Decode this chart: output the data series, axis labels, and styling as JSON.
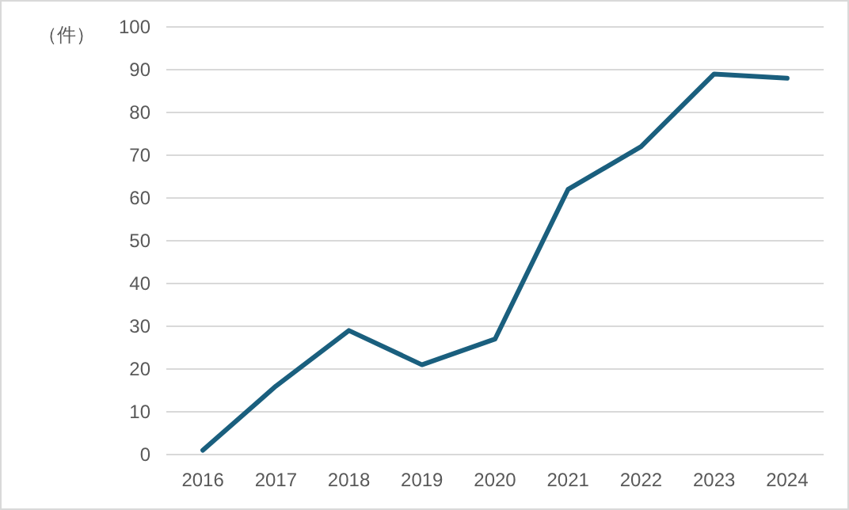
{
  "chart_data": {
    "type": "line",
    "ylabel": "（件）",
    "categories": [
      "2016",
      "2017",
      "2018",
      "2019",
      "2020",
      "2021",
      "2022",
      "2023",
      "2024"
    ],
    "series": [
      {
        "color": "#1a5f7e",
        "values": [
          1,
          16,
          29,
          21,
          27,
          62,
          72,
          89,
          88
        ]
      }
    ],
    "ylim": [
      0,
      100
    ],
    "yticks": [
      0,
      10,
      20,
      30,
      40,
      50,
      60,
      70,
      80,
      90,
      100
    ],
    "grid": "y",
    "marker": "none",
    "line_style": "solid"
  }
}
